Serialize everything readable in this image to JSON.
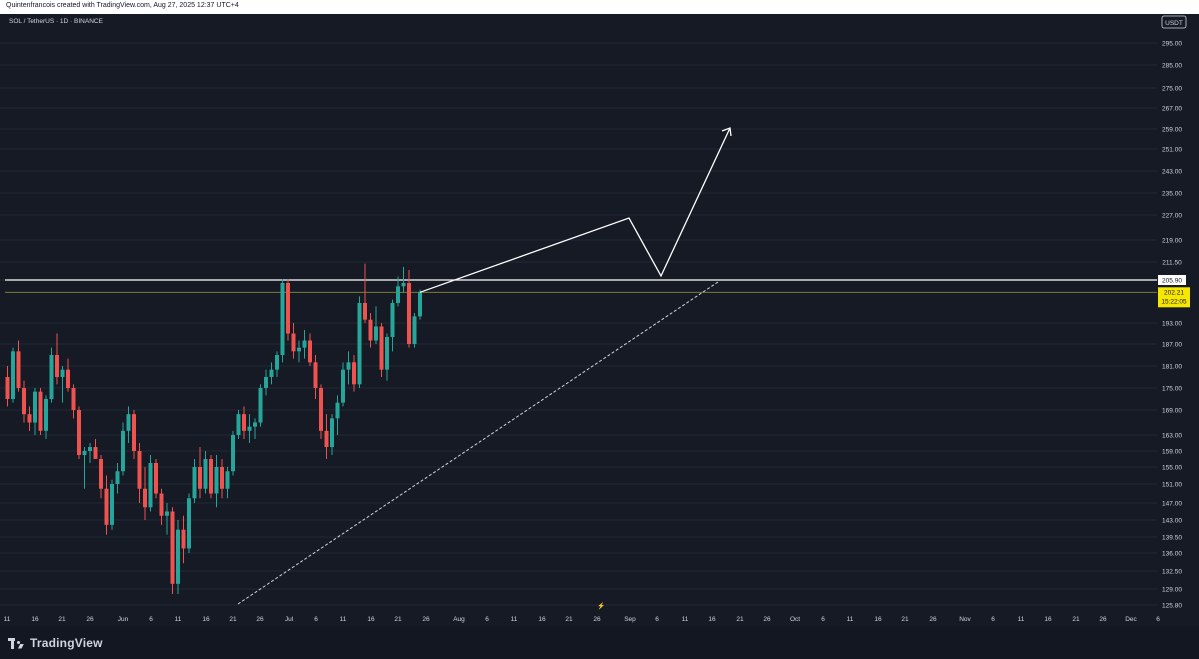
{
  "header": {
    "attribution": "Quintenfrancois created with TradingView.com, Aug 27, 2025 12:37 UTC+4",
    "symbol": "SOL / TetherUS · 1D · BINANCE",
    "currency": "USDT"
  },
  "footer": {
    "logo_text": "TradingView"
  },
  "colors": {
    "up": "#26a69a",
    "down": "#ef5350",
    "background": "#1e2131",
    "level_line": "#ffffff",
    "price_line": "#f7e600"
  },
  "chart_data": {
    "type": "candlestick",
    "price_axis_labels": [
      "295.00",
      "285.00",
      "275.00",
      "267.00",
      "259.00",
      "251.00",
      "243.00",
      "235.00",
      "227.00",
      "219.00",
      "211.50",
      "205.90",
      "202.21",
      "193.00",
      "187.00",
      "181.00",
      "175.00",
      "169.00",
      "163.00",
      "159.00",
      "155.00",
      "151.00",
      "147.00",
      "143.00",
      "139.50",
      "136.00",
      "132.50",
      "129.00",
      "125.80"
    ],
    "date_axis_labels": [
      "11",
      "16",
      "21",
      "26",
      "Jun",
      "6",
      "11",
      "16",
      "21",
      "26",
      "Jul",
      "6",
      "11",
      "16",
      "21",
      "26",
      "Aug",
      "6",
      "11",
      "16",
      "21",
      "26",
      "Sep",
      "6",
      "11",
      "16",
      "21",
      "26",
      "Oct",
      "6",
      "11",
      "16",
      "21",
      "26",
      "Nov",
      "6",
      "11",
      "16",
      "21",
      "26",
      "Dec",
      "6"
    ],
    "resistance_level": 205.9,
    "last_price": 202.21,
    "countdown": "15:22:05",
    "event_marker": "⚡",
    "candles": [
      [
        178,
        181,
        170,
        172
      ],
      [
        172,
        186,
        171,
        185
      ],
      [
        185,
        188,
        174,
        175
      ],
      [
        175,
        177,
        166,
        168
      ],
      [
        168,
        170,
        164,
        166
      ],
      [
        166,
        175,
        163,
        174
      ],
      [
        174,
        175,
        163,
        164
      ],
      [
        164,
        173,
        162,
        172
      ],
      [
        172,
        186,
        171,
        184
      ],
      [
        184,
        190,
        176,
        178
      ],
      [
        178,
        181,
        171,
        180
      ],
      [
        180,
        183,
        174,
        175
      ],
      [
        175,
        176,
        167,
        169
      ],
      [
        169,
        170,
        157,
        158
      ],
      [
        158,
        160,
        150,
        159
      ],
      [
        159,
        161,
        156,
        160
      ],
      [
        160,
        162,
        157,
        157
      ],
      [
        157,
        158,
        148,
        150
      ],
      [
        150,
        153,
        140,
        142
      ],
      [
        142,
        152,
        141,
        151
      ],
      [
        151,
        156,
        149,
        154
      ],
      [
        154,
        166,
        153,
        164
      ],
      [
        164,
        170,
        161,
        168
      ],
      [
        168,
        169,
        157,
        159
      ],
      [
        159,
        161,
        147,
        150
      ],
      [
        150,
        155,
        143,
        146
      ],
      [
        146,
        158,
        145,
        156
      ],
      [
        156,
        157,
        148,
        149
      ],
      [
        149,
        150,
        142,
        144
      ],
      [
        144,
        147,
        140,
        145
      ],
      [
        145,
        146,
        128,
        130
      ],
      [
        130,
        143,
        128,
        141
      ],
      [
        141,
        144,
        134,
        137
      ],
      [
        137,
        149,
        136,
        148
      ],
      [
        148,
        157,
        147,
        155
      ],
      [
        155,
        160,
        148,
        150
      ],
      [
        150,
        159,
        149,
        157
      ],
      [
        157,
        158,
        148,
        149
      ],
      [
        149,
        158,
        146,
        155
      ],
      [
        155,
        157,
        148,
        150
      ],
      [
        150,
        155,
        148,
        154
      ],
      [
        154,
        164,
        153,
        163
      ],
      [
        163,
        169,
        162,
        168
      ],
      [
        168,
        170,
        162,
        164
      ],
      [
        164,
        168,
        161,
        165
      ],
      [
        165,
        167,
        162,
        166
      ],
      [
        166,
        176,
        165,
        175
      ],
      [
        175,
        180,
        173,
        178
      ],
      [
        178,
        182,
        176,
        180
      ],
      [
        180,
        185,
        178,
        184
      ],
      [
        184,
        206,
        182,
        205
      ],
      [
        205,
        206,
        188,
        190
      ],
      [
        190,
        193,
        183,
        185
      ],
      [
        185,
        188,
        182,
        186
      ],
      [
        186,
        191,
        183,
        188
      ],
      [
        188,
        190,
        181,
        182
      ],
      [
        182,
        184,
        172,
        175
      ],
      [
        175,
        176,
        162,
        164
      ],
      [
        164,
        168,
        157,
        160
      ],
      [
        160,
        168,
        158,
        167
      ],
      [
        167,
        173,
        163,
        171
      ],
      [
        171,
        182,
        170,
        180
      ],
      [
        180,
        185,
        176,
        182
      ],
      [
        182,
        184,
        174,
        176
      ],
      [
        176,
        201,
        175,
        199
      ],
      [
        199,
        211,
        193,
        194
      ],
      [
        194,
        196,
        186,
        188
      ],
      [
        188,
        198,
        187,
        192
      ],
      [
        192,
        193,
        178,
        180
      ],
      [
        180,
        190,
        177,
        189
      ],
      [
        189,
        200,
        185,
        199
      ],
      [
        199,
        207,
        198,
        204
      ],
      [
        204,
        210,
        202,
        205
      ],
      [
        205,
        209,
        186,
        187
      ],
      [
        187,
        196,
        186,
        195
      ],
      [
        195,
        203,
        194,
        202.21
      ]
    ]
  }
}
